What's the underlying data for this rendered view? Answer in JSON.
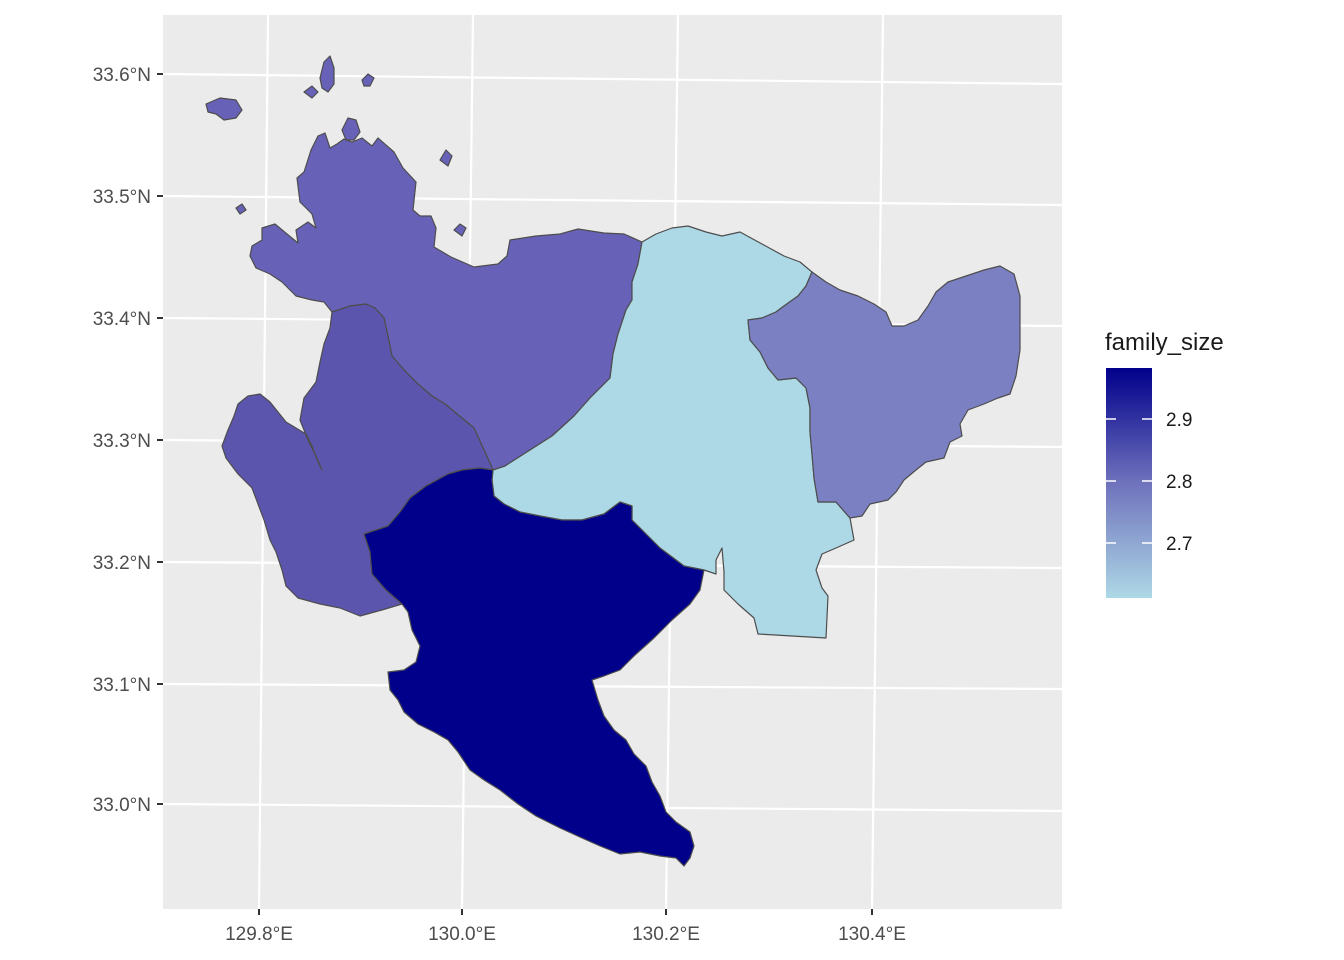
{
  "chart_data": {
    "type": "choropleth",
    "title": "",
    "xlabel": "",
    "ylabel": "",
    "x_ticks": [
      "129.8°E",
      "130.0°E",
      "130.2°E",
      "130.4°E"
    ],
    "y_ticks": [
      "33.6°N",
      "33.5°N",
      "33.4°N",
      "33.3°N",
      "33.2°N",
      "33.1°N",
      "33.0°N"
    ],
    "grid": true,
    "panel_background": "#ebebeb",
    "gridline_color": "#ffffff",
    "border_color": "#4d4d4d",
    "legend": {
      "title": "family_size",
      "position": "right",
      "labels": [
        "2.9",
        "2.8",
        "2.7"
      ],
      "values": [
        2.9,
        2.8,
        2.7
      ],
      "range": [
        2.61,
        2.98
      ],
      "color_low": "#add8e6",
      "color_high": "#00008b"
    },
    "regions": [
      {
        "id": "northwest",
        "value": 2.8,
        "fill": "#6762b7"
      },
      {
        "id": "west",
        "value": 2.82,
        "fill": "#5c55ad"
      },
      {
        "id": "north-central",
        "value": 2.62,
        "fill": "#add8e6"
      },
      {
        "id": "east",
        "value": 2.74,
        "fill": "#7b80c3"
      },
      {
        "id": "south",
        "value": 2.98,
        "fill": "#00008b"
      }
    ]
  }
}
